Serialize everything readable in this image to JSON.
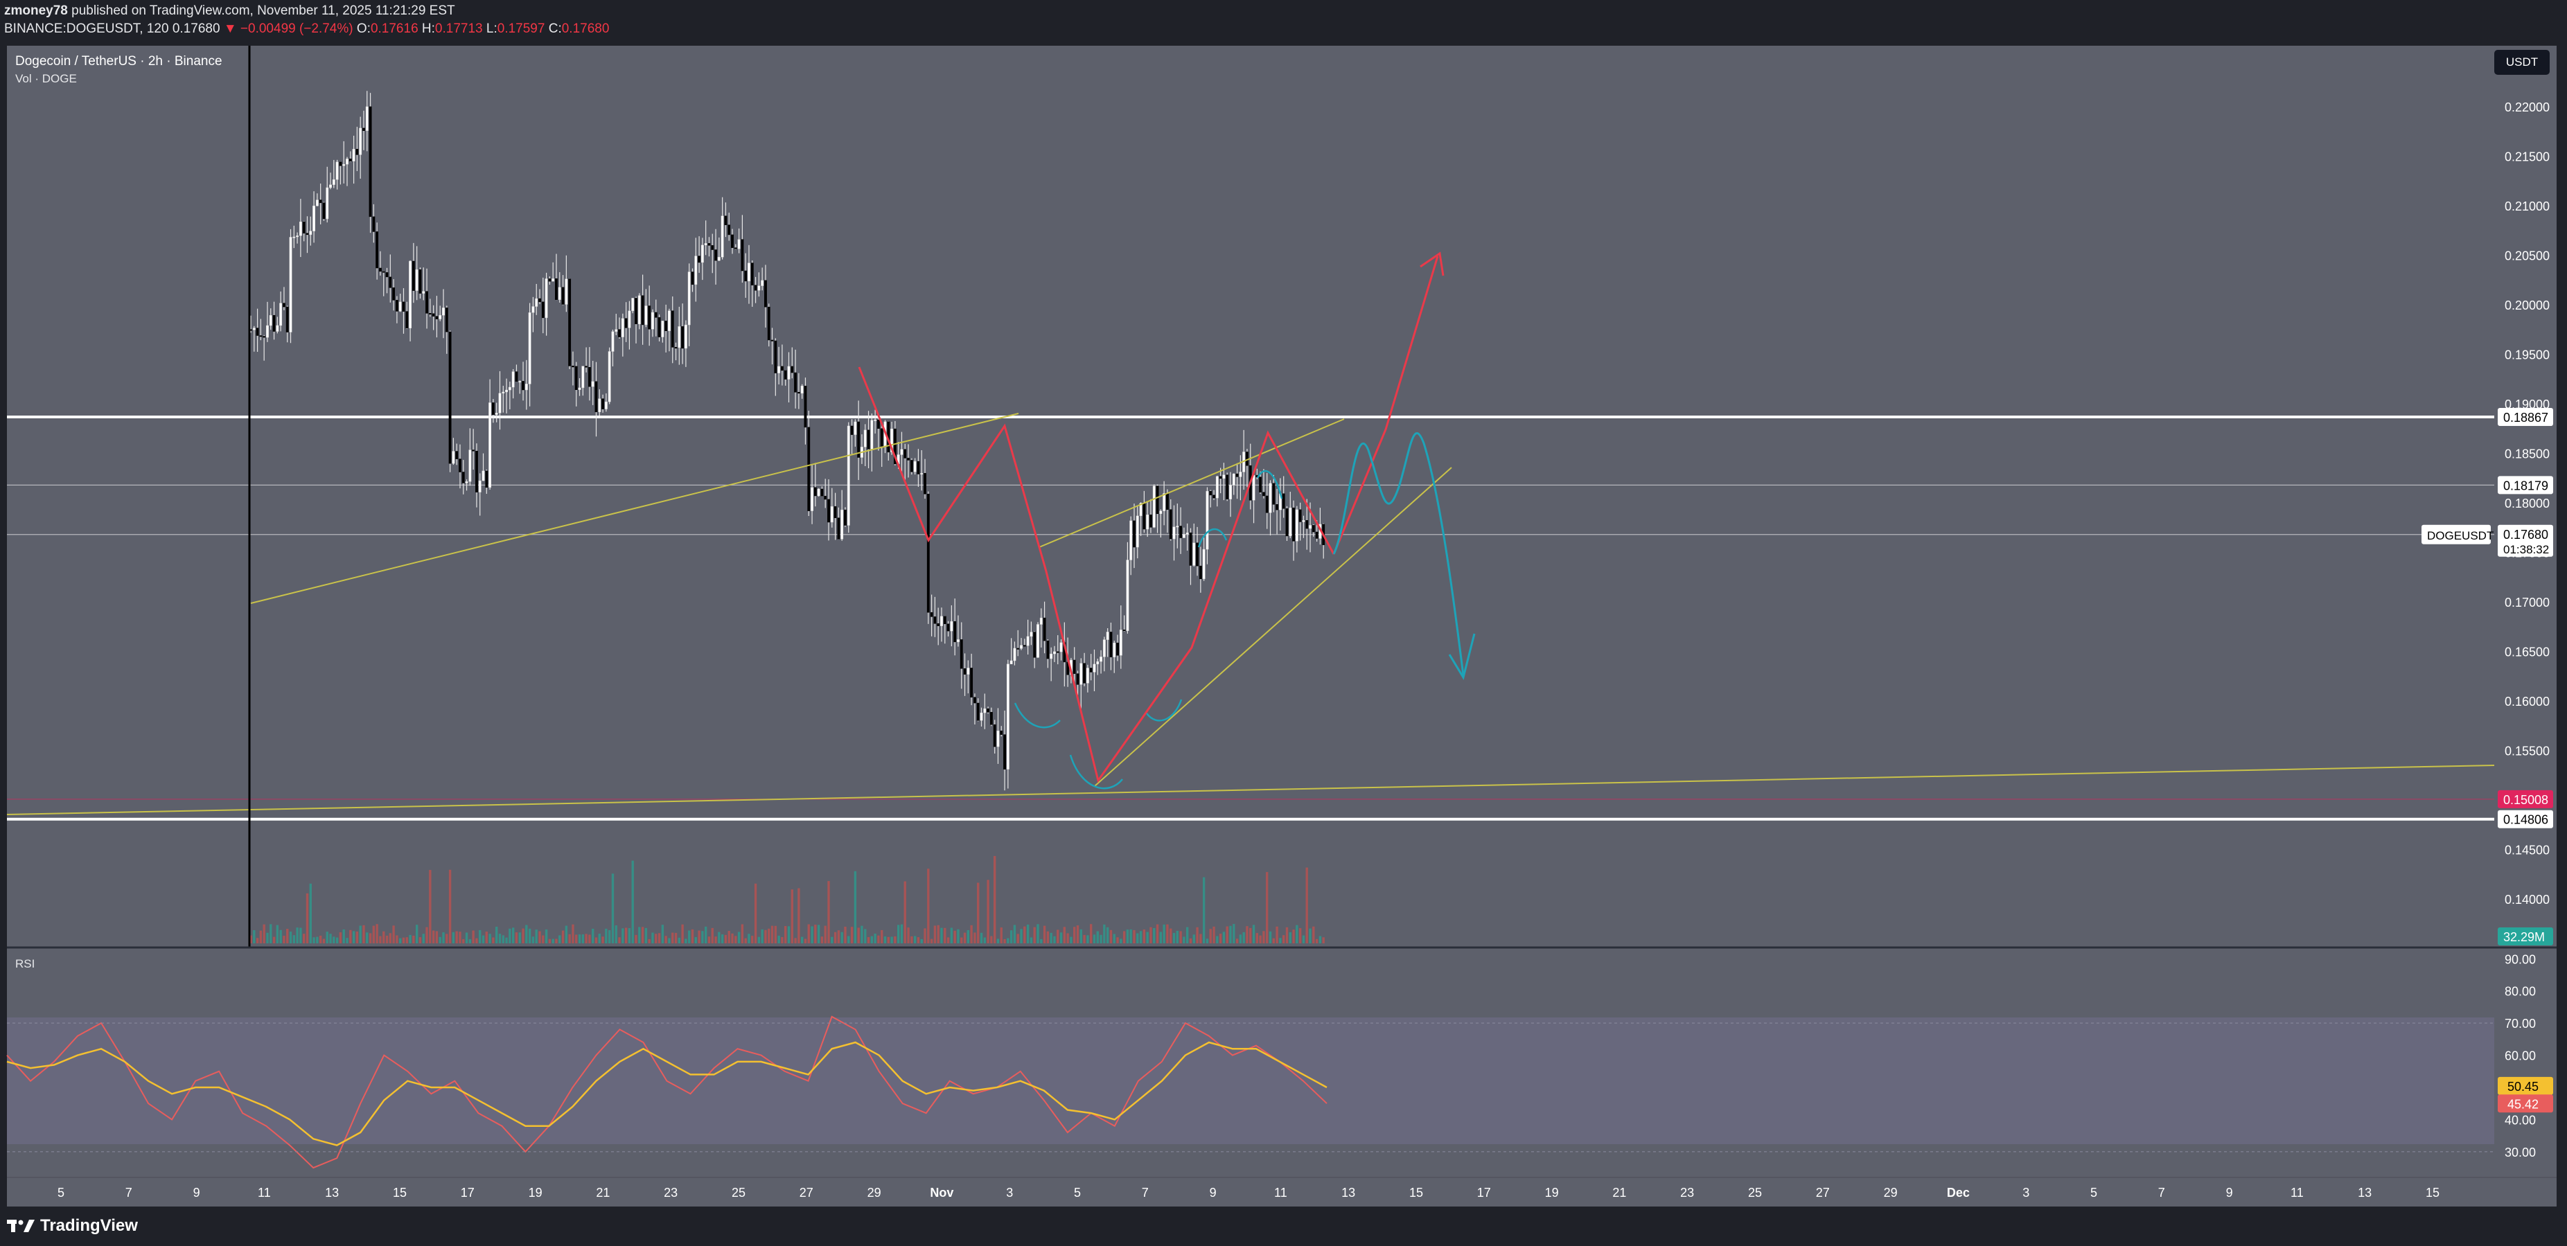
{
  "header": {
    "user": "zmoney78",
    "published": "published on TradingView.com, November 11, 2025 11:21:29 EST",
    "symbol_line": "BINANCE:DOGEUSDT, 120",
    "last": "0.17680",
    "change": "−0.00499 (−2.74%)",
    "open_label": "O:",
    "open": "0.17616",
    "high_label": "H:",
    "high": "0.17713",
    "low_label": "L:",
    "low": "0.17597",
    "close_label": "C:",
    "close": "0.17680"
  },
  "legend": {
    "symbol_title": "Dogecoin / TetherUS · 2h · Binance",
    "volume": "Vol · DOGE",
    "rsi": "RSI"
  },
  "currency_button": "USDT",
  "footer": {
    "brand": "TradingView"
  },
  "colors": {
    "pane_bg": "#5d606b",
    "rsi_band": "#6a6a80",
    "up_candle": "#ffffff",
    "down_candle": "#000000",
    "trend_yellow": "#c9c24a",
    "red_arrow": "#e93a4a",
    "cyan_path": "#1ea3b8",
    "support_magenta": "#e0245e",
    "rsi_line": "#e85d5d",
    "rsi_ma": "#f4c030"
  },
  "icons": [
    "tradingview-logo-icon",
    "down-triangle-icon"
  ],
  "chart_data": {
    "type": "candlestick",
    "title": "Dogecoin / TetherUS · 2h · Binance",
    "price_axis": {
      "ticks": [
        "0.22000",
        "0.21500",
        "0.21000",
        "0.20500",
        "0.20000",
        "0.19500",
        "0.19000",
        "0.18500",
        "0.18000",
        "0.17500",
        "0.17000",
        "0.16500",
        "0.16000",
        "0.15500",
        "0.15000",
        "0.14500",
        "0.14000"
      ],
      "range": [
        0.136,
        0.2245
      ]
    },
    "time_axis": {
      "labels": [
        "5",
        "7",
        "9",
        "11",
        "13",
        "15",
        "17",
        "19",
        "21",
        "23",
        "25",
        "27",
        "29",
        "Nov",
        "3",
        "5",
        "7",
        "9",
        "11",
        "13",
        "15",
        "17",
        "19",
        "21",
        "23",
        "25",
        "27",
        "29",
        "Dec",
        "3",
        "5",
        "7",
        "9",
        "11",
        "13",
        "15"
      ]
    },
    "horizontal_levels": [
      {
        "price": 0.18867,
        "label": "0.18867",
        "color": "#ffffff",
        "style": "solid-thick"
      },
      {
        "price": 0.18179,
        "label": "0.18179",
        "color": "#ffffff",
        "style": "thin"
      },
      {
        "price": 0.1768,
        "label": "0.17680",
        "color": "#ffffff",
        "style": "thin"
      },
      {
        "price": 0.15008,
        "label": "0.15008",
        "color": "#e0245e",
        "style": "thin"
      },
      {
        "price": 0.14806,
        "label": "0.14806",
        "color": "#ffffff",
        "style": "solid-thick"
      }
    ],
    "last_price": {
      "symbol": "DOGEUSDT",
      "price": "0.17680",
      "countdown": "01:38:32"
    },
    "volume_last": "32.29M",
    "approx_path": [
      [
        0.1975,
        0.199
      ],
      [
        0.205,
        0.211
      ],
      [
        0.213,
        0.2185
      ],
      [
        0.207,
        0.198
      ],
      [
        0.203,
        0.197
      ],
      [
        0.185,
        0.182
      ],
      [
        0.19,
        0.194
      ],
      [
        0.2,
        0.202
      ],
      [
        0.193,
        0.19
      ],
      [
        0.197,
        0.2
      ],
      [
        0.199,
        0.196
      ],
      [
        0.203,
        0.208
      ],
      [
        0.206,
        0.201
      ],
      [
        0.196,
        0.189
      ],
      [
        0.181,
        0.177
      ],
      [
        0.186,
        0.188
      ],
      [
        0.186,
        0.181
      ],
      [
        0.169,
        0.164
      ],
      [
        0.162,
        0.154
      ],
      [
        0.165,
        0.167
      ],
      [
        0.166,
        0.162
      ],
      [
        0.163,
        0.167
      ],
      [
        0.176,
        0.182
      ],
      [
        0.178,
        0.173
      ],
      [
        0.18,
        0.184
      ],
      [
        0.182,
        0.18
      ],
      [
        0.178,
        0.1768
      ]
    ],
    "rsi": {
      "ticks": [
        "90.00",
        "80.00",
        "70.00",
        "60.00",
        "50.00",
        "40.00",
        "30.00"
      ],
      "range": [
        22,
        92
      ],
      "band": [
        30,
        70
      ],
      "last_rsi": "45.42",
      "last_ma": "50.45",
      "rsi_values": [
        60,
        52,
        58,
        66,
        70,
        58,
        45,
        40,
        52,
        55,
        42,
        38,
        32,
        25,
        28,
        45,
        60,
        55,
        48,
        52,
        42,
        38,
        30,
        38,
        50,
        60,
        68,
        64,
        52,
        48,
        56,
        62,
        60,
        55,
        52,
        72,
        68,
        55,
        45,
        42,
        52,
        48,
        50,
        55,
        46,
        36,
        42,
        38,
        52,
        58,
        70,
        66,
        60,
        63,
        58,
        52,
        45
      ],
      "ma_values": [
        58,
        56,
        57,
        60,
        62,
        58,
        52,
        48,
        50,
        50,
        47,
        44,
        40,
        34,
        32,
        36,
        46,
        52,
        50,
        50,
        46,
        42,
        38,
        38,
        44,
        52,
        58,
        62,
        58,
        54,
        54,
        58,
        58,
        56,
        54,
        62,
        64,
        60,
        52,
        48,
        50,
        49,
        50,
        52,
        49,
        43,
        42,
        40,
        46,
        52,
        60,
        64,
        62,
        62,
        58,
        54,
        50
      ]
    }
  }
}
